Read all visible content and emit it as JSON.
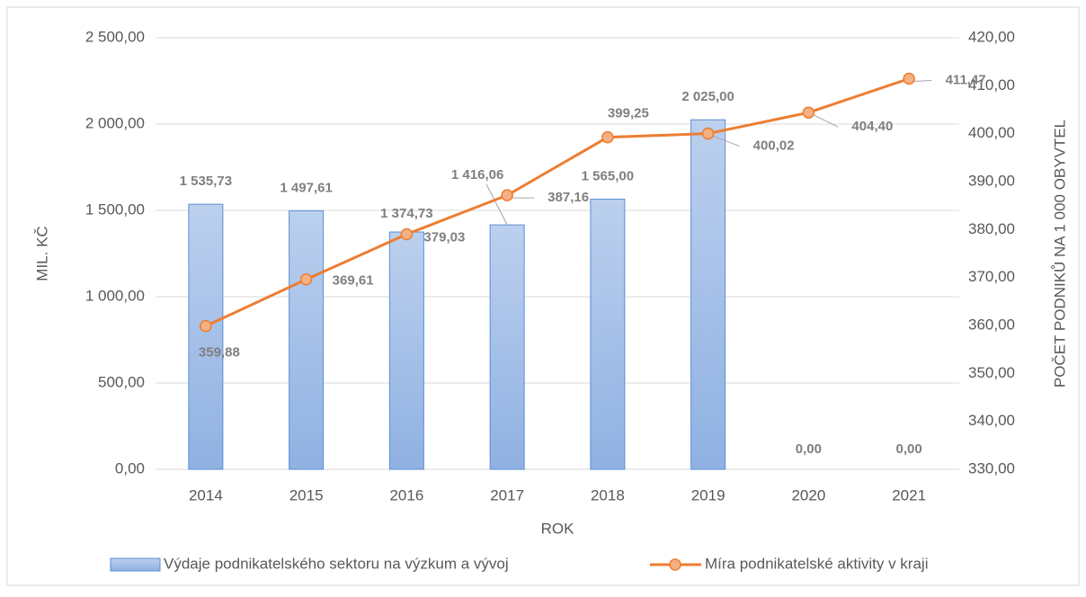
{
  "chart_data": {
    "type": "bar",
    "categories": [
      "2014",
      "2015",
      "2016",
      "2017",
      "2018",
      "2019",
      "2020",
      "2021"
    ],
    "xlabel": "ROK",
    "ylabel": "MIL. KČ",
    "y2label": "POČET PODNIKŮ NA 1 000 OBYVTEL",
    "ylim": [
      0,
      2500
    ],
    "yticks": [
      {
        "value": 0,
        "label": "0,00"
      },
      {
        "value": 500,
        "label": "500,00"
      },
      {
        "value": 1000,
        "label": "1 000,00"
      },
      {
        "value": 1500,
        "label": "1 500,00"
      },
      {
        "value": 2000,
        "label": "2 000,00"
      },
      {
        "value": 2500,
        "label": "2 500,00"
      }
    ],
    "y2lim": [
      330,
      420
    ],
    "y2ticks": [
      {
        "value": 330,
        "label": "330,00"
      },
      {
        "value": 340,
        "label": "340,00"
      },
      {
        "value": 350,
        "label": "350,00"
      },
      {
        "value": 360,
        "label": "360,00"
      },
      {
        "value": 370,
        "label": "370,00"
      },
      {
        "value": 380,
        "label": "380,00"
      },
      {
        "value": 390,
        "label": "390,00"
      },
      {
        "value": 400,
        "label": "400,00"
      },
      {
        "value": 410,
        "label": "410,00"
      },
      {
        "value": 420,
        "label": "420,00"
      }
    ],
    "grid": true,
    "legend": "bottom",
    "series": [
      {
        "name": "Výdaje podnikatelského sektoru na výzkum a vývoj",
        "type": "bar",
        "color": "#9dbbe5",
        "values": [
          1535.73,
          1497.61,
          1374.73,
          1416.06,
          1565.0,
          2025.0,
          0,
          0
        ],
        "value_labels": [
          "1 535,73",
          "1 497,61",
          "1 374,73",
          "1 416,06",
          "1 565,00",
          "2 025,00",
          "0,00",
          "0,00"
        ]
      },
      {
        "name": "Míra podnikatelské aktivity v kraji",
        "type": "line",
        "axis": "y2",
        "color": "#ed7d31",
        "values": [
          359.88,
          369.61,
          379.03,
          387.16,
          399.25,
          400.02,
          404.4,
          411.47
        ],
        "value_labels": [
          "359,88",
          "369,61",
          "379,03",
          "387,16",
          "399,25",
          "400,02",
          "404,40",
          "411,47"
        ]
      }
    ]
  }
}
